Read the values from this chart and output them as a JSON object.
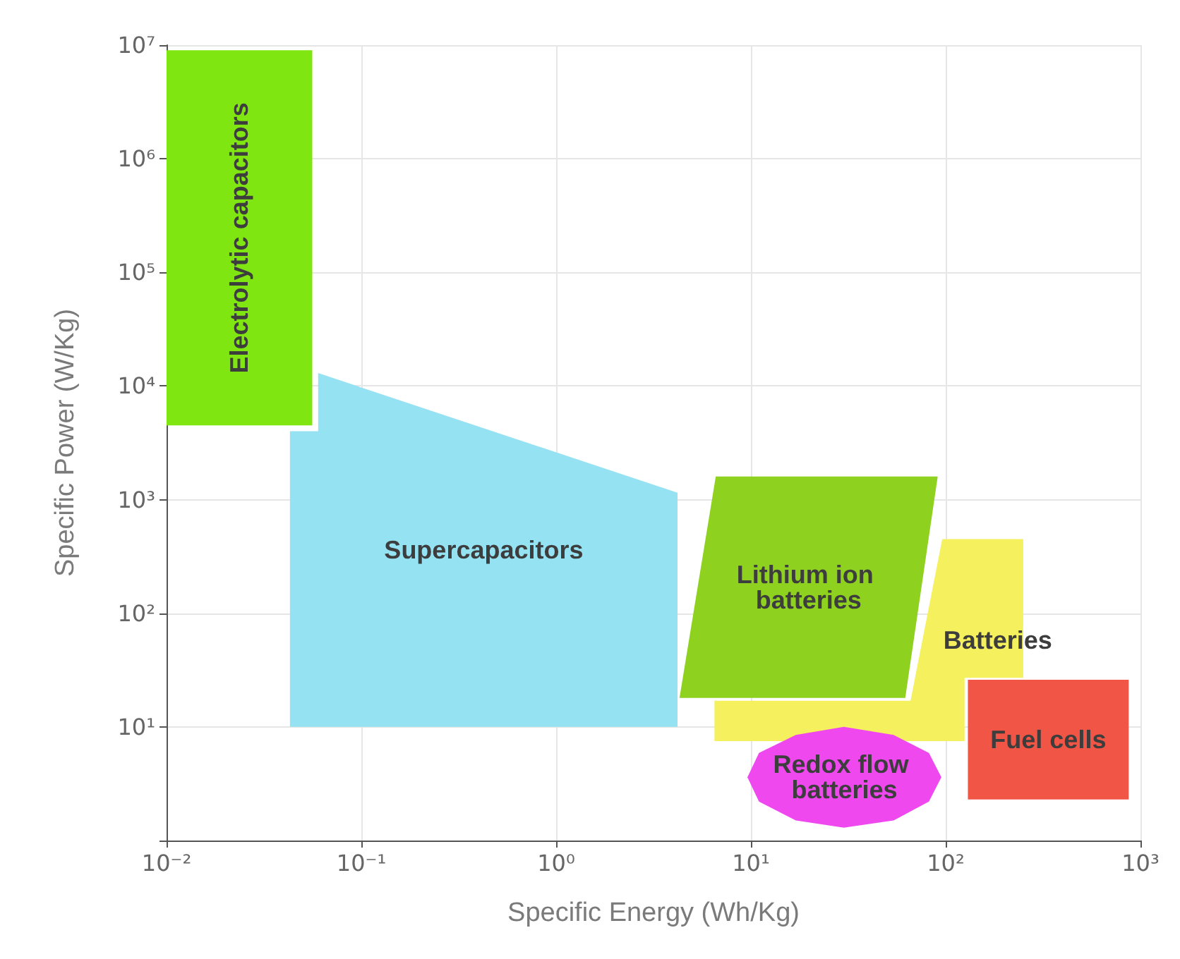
{
  "chart_data": {
    "type": "area",
    "xlabel": "Specific Energy (Wh/Kg)",
    "ylabel": "Specific Power (W/Kg)",
    "log": "xy",
    "grid": true,
    "legend": false,
    "xlim": [
      0.01,
      1000
    ],
    "ylim": [
      1,
      10000000
    ],
    "xticks": [
      {
        "value": 0.01,
        "label": "10⁻²"
      },
      {
        "value": 0.1,
        "label": "10⁻¹"
      },
      {
        "value": 1,
        "label": "10⁰"
      },
      {
        "value": 10,
        "label": "10¹"
      },
      {
        "value": 100,
        "label": "10²"
      },
      {
        "value": 1000,
        "label": "10³"
      }
    ],
    "yticks": [
      {
        "value": 1,
        "label": null
      },
      {
        "value": 10,
        "label": "10¹"
      },
      {
        "value": 100,
        "label": "10²"
      },
      {
        "value": 1000,
        "label": "10³"
      },
      {
        "value": 10000,
        "label": "10⁴"
      },
      {
        "value": 100000,
        "label": "10⁵"
      },
      {
        "value": 1000000,
        "label": "10⁶"
      },
      {
        "value": 10000000,
        "label": "10⁷"
      }
    ],
    "series": [
      {
        "name": "Supercapacitors",
        "color": "#94e2f2",
        "x": [
          0.043,
          0.043,
          0.06,
          0.06,
          4.2,
          4.2
        ],
        "values": [
          10,
          4000,
          4000,
          13000,
          1150,
          10
        ]
      },
      {
        "name": "Electrolytic capacitors",
        "color": "#80e612",
        "x": [
          0.01,
          0.056,
          0.056,
          0.01
        ],
        "values": [
          4500,
          4500,
          9000000,
          9000000
        ]
      },
      {
        "name": "Batteries",
        "color": "#f5f05e",
        "x": [
          6.5,
          125,
          125,
          250,
          250,
          96,
          66,
          6.5
        ],
        "values": [
          7.5,
          7.5,
          27,
          27,
          450,
          450,
          17,
          17
        ]
      },
      {
        "name": "Lithium ion batteries",
        "color": "#8fd11f",
        "x": [
          4.3,
          62,
          91,
          6.6
        ],
        "values": [
          18,
          18,
          1600,
          1600
        ]
      },
      {
        "name": "Redox flow batteries",
        "color": "#ee48ee",
        "x": [
          95,
          82,
          54,
          30,
          17,
          11,
          9.6,
          11,
          17,
          30,
          54,
          82
        ],
        "values": [
          3.6,
          5.9,
          8.5,
          10,
          8.5,
          5.9,
          3.6,
          2.2,
          1.5,
          1.3,
          1.5,
          2.2
        ]
      },
      {
        "name": "Fuel cells",
        "color": "#f05545",
        "x": [
          130,
          870,
          870,
          130
        ],
        "values": [
          2.3,
          2.3,
          26,
          26
        ]
      }
    ]
  }
}
